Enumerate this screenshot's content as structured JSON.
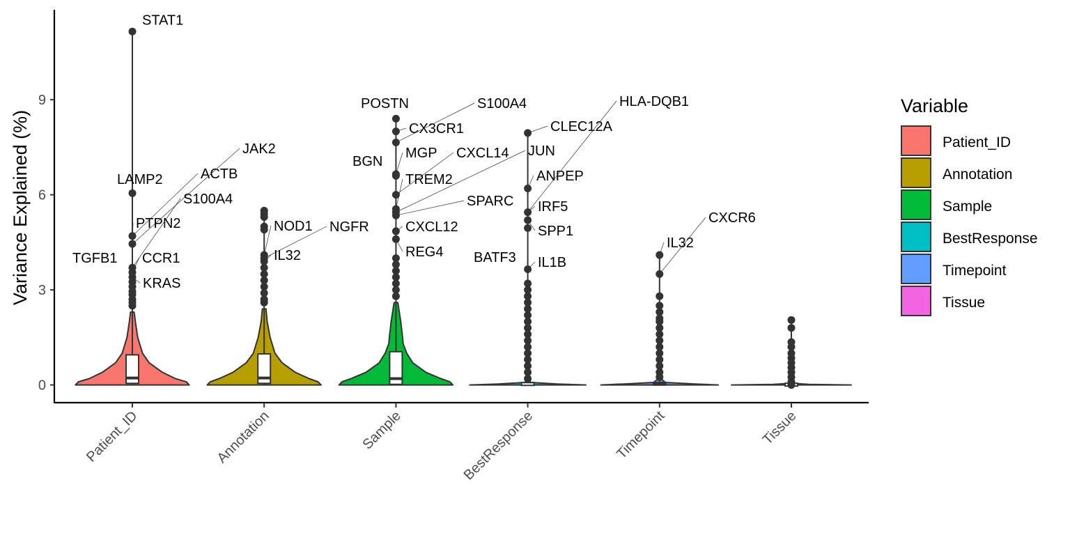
{
  "chart_data": {
    "type": "violin",
    "ylabel": "Variance Explained (%)",
    "xlabel": "",
    "ylim": [
      -0.55,
      11.7
    ],
    "yticks": [
      0,
      3,
      6,
      9
    ],
    "grid": false,
    "legend_position": "right",
    "legend": {
      "title": "Variable",
      "entries": [
        {
          "label": "Patient_ID",
          "color": "#F8766D"
        },
        {
          "label": "Annotation",
          "color": "#B79F00"
        },
        {
          "label": "Sample",
          "color": "#00BA38"
        },
        {
          "label": "BestResponse",
          "color": "#00BFC4"
        },
        {
          "label": "Timepoint",
          "color": "#619CFF"
        },
        {
          "label": "Tissue",
          "color": "#F564E3"
        }
      ]
    },
    "categories": [
      "Patient_ID",
      "Annotation",
      "Sample",
      "BestResponse",
      "Timepoint",
      "Tissue"
    ],
    "series": [
      {
        "category": "Patient_ID",
        "color": "#F8766D",
        "box": {
          "q1": 0.05,
          "median": 0.22,
          "q3": 0.95,
          "whisker_low": 0.0,
          "whisker_high": 2.3
        },
        "violin_profile": [
          [
            0,
            0.95
          ],
          [
            0.1,
            0.9
          ],
          [
            0.2,
            0.72
          ],
          [
            0.4,
            0.5
          ],
          [
            0.7,
            0.28
          ],
          [
            1.0,
            0.17
          ],
          [
            1.5,
            0.09
          ],
          [
            2.0,
            0.05
          ],
          [
            2.3,
            0.03
          ]
        ],
        "outliers": [
          11.15,
          6.05,
          4.7,
          4.45,
          3.7,
          3.55,
          3.4,
          3.25,
          3.1,
          2.95,
          2.85,
          2.7,
          2.6,
          2.5
        ],
        "labeled_points": [
          {
            "gene": "STAT1",
            "value": 11.15
          },
          {
            "gene": "LAMP2",
            "value": 6.05
          },
          {
            "gene": "ACTB",
            "value": 4.7
          },
          {
            "gene": "JAK2",
            "value": 4.45
          },
          {
            "gene": "PTPN2",
            "value": 4.45
          },
          {
            "gene": "S100A4",
            "value": 3.7
          },
          {
            "gene": "TGFB1",
            "value": 3.7
          },
          {
            "gene": "CCR1",
            "value": 3.55
          },
          {
            "gene": "KRAS",
            "value": 3.4
          }
        ]
      },
      {
        "category": "Annotation",
        "color": "#B79F00",
        "box": {
          "q1": 0.05,
          "median": 0.22,
          "q3": 0.98,
          "whisker_low": 0.0,
          "whisker_high": 2.4
        },
        "violin_profile": [
          [
            0,
            0.95
          ],
          [
            0.1,
            0.9
          ],
          [
            0.2,
            0.75
          ],
          [
            0.4,
            0.52
          ],
          [
            0.7,
            0.3
          ],
          [
            1.0,
            0.18
          ],
          [
            1.5,
            0.1
          ],
          [
            2.0,
            0.05
          ],
          [
            2.4,
            0.03
          ]
        ],
        "outliers": [
          5.5,
          5.4,
          5.3,
          5.0,
          4.9,
          4.1,
          4.0,
          3.9,
          3.7,
          3.5,
          3.3,
          3.1,
          2.9,
          2.7,
          2.6
        ],
        "labeled_points": [
          {
            "gene": "NOD1",
            "value": 4.1
          },
          {
            "gene": "NGFR",
            "value": 4.0
          },
          {
            "gene": "IL32",
            "value": 3.9
          }
        ]
      },
      {
        "category": "Sample",
        "color": "#00BA38",
        "box": {
          "q1": 0.02,
          "median": 0.2,
          "q3": 1.05,
          "whisker_low": 0.0,
          "whisker_high": 2.6
        },
        "violin_profile": [
          [
            0,
            0.95
          ],
          [
            0.1,
            0.9
          ],
          [
            0.2,
            0.75
          ],
          [
            0.4,
            0.5
          ],
          [
            0.7,
            0.28
          ],
          [
            1.0,
            0.18
          ],
          [
            1.3,
            0.12
          ],
          [
            1.5,
            0.11
          ],
          [
            2.0,
            0.08
          ],
          [
            2.5,
            0.04
          ],
          [
            2.6,
            0.03
          ]
        ],
        "outliers": [
          8.4,
          8.0,
          7.65,
          6.65,
          6.6,
          6.0,
          5.55,
          5.45,
          5.35,
          4.85,
          4.6,
          4.0,
          3.8,
          3.6,
          3.4,
          3.2,
          3.0,
          2.8
        ],
        "labeled_points": [
          {
            "gene": "POSTN",
            "value": 8.4
          },
          {
            "gene": "CX3CR1",
            "value": 8.0
          },
          {
            "gene": "S100A4",
            "value": 7.65
          },
          {
            "gene": "BGN",
            "value": 6.65
          },
          {
            "gene": "MGP",
            "value": 6.65
          },
          {
            "gene": "CXCL14",
            "value": 6.0
          },
          {
            "gene": "TREM2",
            "value": 5.55
          },
          {
            "gene": "JUN",
            "value": 5.45
          },
          {
            "gene": "SPARC",
            "value": 5.35
          },
          {
            "gene": "CXCL12",
            "value": 4.85
          },
          {
            "gene": "REG4",
            "value": 4.6
          }
        ]
      },
      {
        "category": "BestResponse",
        "color": "#00BFC4",
        "box": {
          "q1": 0.0,
          "median": 0.0,
          "q3": 0.03,
          "whisker_low": 0.0,
          "whisker_high": 0.07
        },
        "violin_profile": [
          [
            0,
            0.97
          ],
          [
            0.03,
            0.5
          ],
          [
            0.08,
            0.05
          ],
          [
            0.2,
            0.02
          ]
        ],
        "outliers": [
          7.95,
          6.2,
          5.45,
          5.2,
          4.95,
          3.65,
          3.2,
          3.0,
          2.8,
          2.6,
          2.4,
          2.2,
          2.0,
          1.8,
          1.6,
          1.4,
          1.2,
          1.0,
          0.8,
          0.6,
          0.4,
          0.2
        ],
        "labeled_points": [
          {
            "gene": "CLEC12A",
            "value": 7.95
          },
          {
            "gene": "JUN",
            "value": 7.95
          },
          {
            "gene": "ANPEP",
            "value": 6.2
          },
          {
            "gene": "HLA-DQB1",
            "value": 5.45
          },
          {
            "gene": "IRF5",
            "value": 5.45
          },
          {
            "gene": "SPP1",
            "value": 5.2
          },
          {
            "gene": "BATF3",
            "value": 3.65
          },
          {
            "gene": "IL1B",
            "value": 3.65
          }
        ]
      },
      {
        "category": "Timepoint",
        "color": "#619CFF",
        "box": {
          "q1": 0.0,
          "median": 0.02,
          "q3": 0.08,
          "whisker_low": 0.0,
          "whisker_high": 0.15
        },
        "violin_profile": [
          [
            0,
            0.98
          ],
          [
            0.03,
            0.6
          ],
          [
            0.08,
            0.1
          ],
          [
            0.2,
            0.02
          ]
        ],
        "outliers": [
          4.1,
          3.5,
          2.8,
          2.5,
          2.3,
          2.1,
          2.0,
          1.8,
          1.6,
          1.4,
          1.2,
          1.0,
          0.8,
          0.6,
          0.4,
          0.25
        ],
        "labeled_points": [
          {
            "gene": "IL32",
            "value": 4.1
          },
          {
            "gene": "CXCR6",
            "value": 3.5
          }
        ]
      },
      {
        "category": "Tissue",
        "color": "#F564E3",
        "box": {
          "q1": 0.0,
          "median": 0.0,
          "q3": 0.01,
          "whisker_low": 0.0,
          "whisker_high": 0.02
        },
        "violin_profile": [
          [
            0,
            1.0
          ],
          [
            0.02,
            0.3
          ],
          [
            0.05,
            0.02
          ]
        ],
        "outliers": [
          2.05,
          1.8,
          1.35,
          1.2,
          1.0,
          0.85,
          0.7,
          0.55,
          0.4,
          0.25,
          0.1,
          0.0
        ],
        "labeled_points": []
      }
    ]
  }
}
